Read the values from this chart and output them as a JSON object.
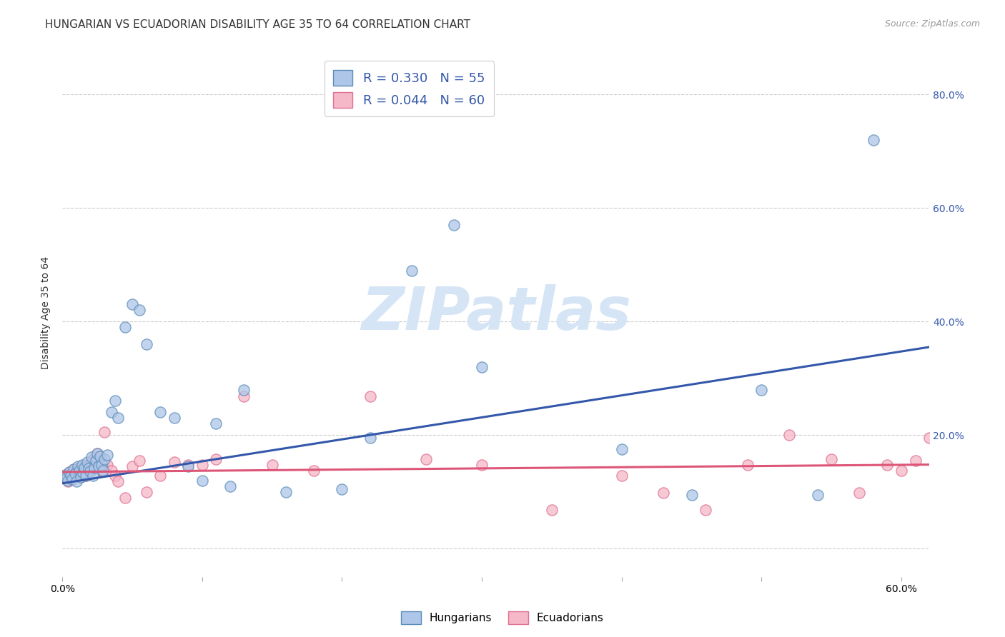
{
  "title": "HUNGARIAN VS ECUADORIAN DISABILITY AGE 35 TO 64 CORRELATION CHART",
  "source": "Source: ZipAtlas.com",
  "ylabel": "Disability Age 35 to 64",
  "xlim": [
    0.0,
    0.62
  ],
  "ylim": [
    -0.05,
    0.88
  ],
  "xticks": [
    0.0,
    0.1,
    0.2,
    0.3,
    0.4,
    0.5,
    0.6
  ],
  "xtick_labels": [
    "0.0%",
    "",
    "",
    "",
    "",
    "",
    "60.0%"
  ],
  "yticks": [
    0.0,
    0.2,
    0.4,
    0.6,
    0.8
  ],
  "ytick_labels_right": [
    "",
    "20.0%",
    "40.0%",
    "60.0%",
    "80.0%"
  ],
  "blue_color": "#AEC6E8",
  "pink_color": "#F4B8C8",
  "blue_edge_color": "#5B8DB8",
  "pink_edge_color": "#E07090",
  "blue_line_color": "#3357AA",
  "pink_line_color": "#DD5577",
  "legend_text_color": "#3357AA",
  "watermark_color": "#D5E5F5",
  "hungarian_x": [
    0.002,
    0.003,
    0.004,
    0.005,
    0.006,
    0.007,
    0.008,
    0.009,
    0.01,
    0.011,
    0.012,
    0.013,
    0.014,
    0.015,
    0.016,
    0.017,
    0.018,
    0.019,
    0.02,
    0.021,
    0.022,
    0.023,
    0.024,
    0.025,
    0.026,
    0.027,
    0.028,
    0.029,
    0.03,
    0.032,
    0.035,
    0.038,
    0.04,
    0.045,
    0.05,
    0.055,
    0.06,
    0.07,
    0.08,
    0.09,
    0.1,
    0.11,
    0.12,
    0.13,
    0.16,
    0.2,
    0.22,
    0.25,
    0.28,
    0.3,
    0.4,
    0.45,
    0.5,
    0.54,
    0.58
  ],
  "hungarian_y": [
    0.13,
    0.125,
    0.12,
    0.135,
    0.128,
    0.122,
    0.14,
    0.132,
    0.118,
    0.145,
    0.138,
    0.126,
    0.148,
    0.133,
    0.143,
    0.128,
    0.152,
    0.141,
    0.136,
    0.161,
    0.128,
    0.142,
    0.155,
    0.168,
    0.145,
    0.163,
    0.147,
    0.138,
    0.158,
    0.165,
    0.24,
    0.26,
    0.23,
    0.39,
    0.43,
    0.42,
    0.36,
    0.24,
    0.23,
    0.145,
    0.12,
    0.22,
    0.11,
    0.28,
    0.1,
    0.105,
    0.195,
    0.49,
    0.57,
    0.32,
    0.175,
    0.095,
    0.28,
    0.095,
    0.72
  ],
  "ecuadorian_x": [
    0.002,
    0.003,
    0.004,
    0.005,
    0.006,
    0.007,
    0.008,
    0.009,
    0.01,
    0.011,
    0.012,
    0.013,
    0.014,
    0.015,
    0.016,
    0.017,
    0.018,
    0.019,
    0.02,
    0.021,
    0.022,
    0.023,
    0.024,
    0.025,
    0.026,
    0.027,
    0.028,
    0.029,
    0.03,
    0.032,
    0.035,
    0.038,
    0.04,
    0.045,
    0.05,
    0.055,
    0.06,
    0.07,
    0.08,
    0.09,
    0.1,
    0.11,
    0.13,
    0.15,
    0.18,
    0.22,
    0.26,
    0.3,
    0.35,
    0.4,
    0.43,
    0.46,
    0.49,
    0.52,
    0.55,
    0.57,
    0.59,
    0.6,
    0.61,
    0.62
  ],
  "ecuadorian_y": [
    0.125,
    0.13,
    0.118,
    0.135,
    0.128,
    0.122,
    0.14,
    0.132,
    0.128,
    0.138,
    0.142,
    0.126,
    0.138,
    0.133,
    0.145,
    0.128,
    0.148,
    0.141,
    0.136,
    0.152,
    0.158,
    0.145,
    0.155,
    0.168,
    0.145,
    0.163,
    0.138,
    0.147,
    0.205,
    0.148,
    0.138,
    0.128,
    0.118,
    0.09,
    0.145,
    0.155,
    0.1,
    0.128,
    0.152,
    0.148,
    0.148,
    0.158,
    0.268,
    0.148,
    0.138,
    0.268,
    0.158,
    0.148,
    0.068,
    0.128,
    0.098,
    0.068,
    0.148,
    0.2,
    0.158,
    0.098,
    0.148,
    0.138,
    0.155,
    0.195
  ],
  "blue_trend_x": [
    0.0,
    0.62
  ],
  "blue_trend_y": [
    0.115,
    0.355
  ],
  "pink_trend_x": [
    0.0,
    0.62
  ],
  "pink_trend_y": [
    0.135,
    0.148
  ],
  "background_color": "#FFFFFF",
  "grid_color": "#CCCCCC",
  "title_fontsize": 11,
  "label_fontsize": 10,
  "tick_fontsize": 10,
  "legend_fontsize": 13,
  "marker_size": 120
}
